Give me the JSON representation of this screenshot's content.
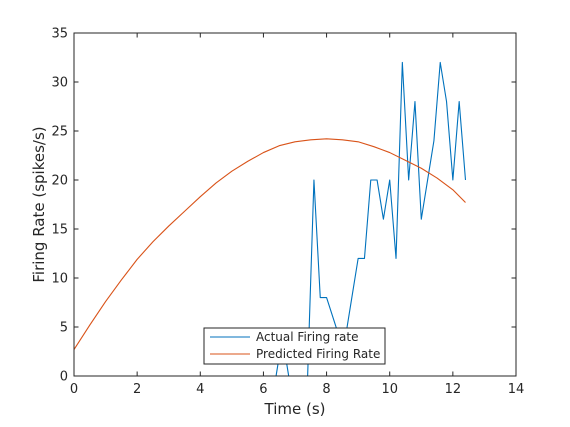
{
  "chart_data": {
    "type": "line",
    "title": "",
    "xlabel": "Time (s)",
    "ylabel": "Firing Rate (spikes/s)",
    "xlim": [
      0,
      14
    ],
    "ylim": [
      0,
      35
    ],
    "x_ticks": [
      0,
      2,
      4,
      6,
      8,
      10,
      12,
      14
    ],
    "y_ticks": [
      0,
      5,
      10,
      15,
      20,
      25,
      30,
      35
    ],
    "x_tick_labels": [
      "0",
      "2",
      "4",
      "6",
      "8",
      "10",
      "12",
      "14"
    ],
    "y_tick_labels": [
      "0",
      "5",
      "10",
      "15",
      "20",
      "25",
      "30",
      "35"
    ],
    "grid": false,
    "legend_position": "bottom-center",
    "series": [
      {
        "name": "Actual Firing rate",
        "color": "#0072BD",
        "x": [
          0,
          6.2,
          6.4,
          6.6,
          6.8,
          7.0,
          7.2,
          7.4,
          7.6,
          7.8,
          8.0,
          8.2,
          8.4,
          8.6,
          8.8,
          9.0,
          9.2,
          9.4,
          9.6,
          9.8,
          10.0,
          10.2,
          10.4,
          10.6,
          10.8,
          11.0,
          11.2,
          11.4,
          11.6,
          11.8,
          12.0,
          12.2,
          12.4
        ],
        "y": [
          0,
          0,
          0,
          4,
          0,
          0,
          0,
          0,
          20,
          8,
          8,
          6,
          4,
          4,
          8,
          12,
          12,
          20,
          20,
          16,
          20,
          12,
          32,
          20,
          28,
          16,
          20,
          24,
          32,
          28,
          20,
          28,
          20
        ]
      },
      {
        "name": "Predicted Firing Rate",
        "color": "#D95319",
        "x": [
          0,
          0.5,
          1,
          1.5,
          2,
          2.5,
          3,
          3.5,
          4,
          4.5,
          5,
          5.5,
          6,
          6.5,
          7,
          7.5,
          8,
          8.5,
          9,
          9.5,
          10,
          10.5,
          11,
          11.5,
          12,
          12.4
        ],
        "y": [
          2.7,
          5.2,
          7.6,
          9.8,
          11.9,
          13.7,
          15.3,
          16.8,
          18.3,
          19.7,
          20.9,
          21.9,
          22.8,
          23.5,
          23.9,
          24.1,
          24.2,
          24.1,
          23.9,
          23.4,
          22.8,
          22.0,
          21.2,
          20.2,
          19.0,
          17.7
        ]
      }
    ]
  }
}
